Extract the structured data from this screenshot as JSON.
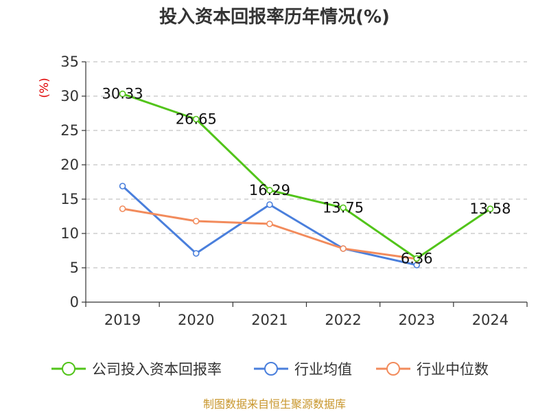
{
  "chart_data": {
    "type": "line",
    "title": "投入资本回报率历年情况(%)",
    "ylabel": "(%)",
    "categories": [
      "2019",
      "2020",
      "2021",
      "2022",
      "2023",
      "2024"
    ],
    "ylim": [
      0,
      35
    ],
    "yticks": [
      0,
      5,
      10,
      15,
      20,
      25,
      30,
      35
    ],
    "grid": true,
    "legend_position": "bottom",
    "series": [
      {
        "name": "公司投入资本回报率",
        "color": "#52c41a",
        "values": [
          30.33,
          26.65,
          16.29,
          13.75,
          6.36,
          13.58
        ],
        "labels": [
          "30.33",
          "26.65",
          "16.29",
          "13.75",
          "6.36",
          "13.58"
        ]
      },
      {
        "name": "行业均值",
        "color": "#4a7fdc",
        "values": [
          16.9,
          7.1,
          14.2,
          7.8,
          5.4,
          null
        ]
      },
      {
        "name": "行业中位数",
        "color": "#f28b5c",
        "values": [
          13.6,
          11.8,
          11.4,
          7.8,
          6.3,
          null
        ]
      }
    ]
  },
  "source": "制图数据来自恒生聚源数据库"
}
